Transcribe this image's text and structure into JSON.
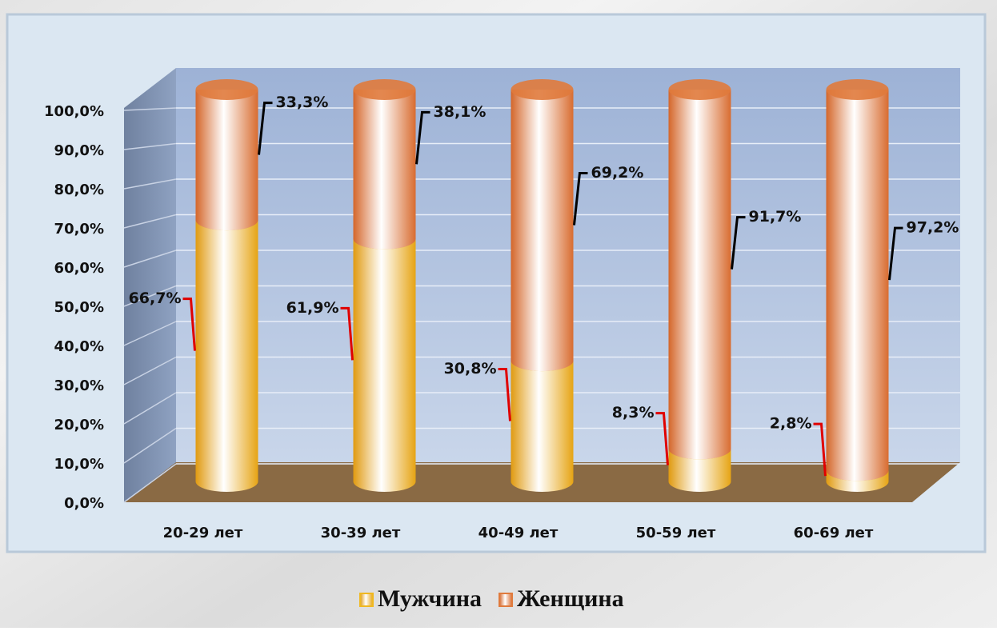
{
  "chart_data": {
    "type": "bar",
    "stacked": true,
    "categories": [
      "20-29 лет",
      "30-39 лет",
      "40-49 лет",
      "50-59 лет",
      "60-69 лет"
    ],
    "series": [
      {
        "name": "Мужчина",
        "color": "#f0b820",
        "values": [
          66.7,
          61.9,
          30.8,
          8.3,
          2.8
        ],
        "value_labels": [
          "66,7%",
          "61,9%",
          "30,8%",
          "8,3%",
          "2,8%"
        ]
      },
      {
        "name": "Женщина",
        "color": "#e07a3c",
        "values": [
          33.3,
          38.1,
          69.2,
          91.7,
          97.2
        ],
        "value_labels": [
          "33,3%",
          "38,1%",
          "69,2%",
          "91,7%",
          "97,2%"
        ]
      }
    ],
    "ylim": [
      0,
      100
    ],
    "yticks": [
      {
        "value": 0,
        "label": "0,0%"
      },
      {
        "value": 10,
        "label": "10,0%"
      },
      {
        "value": 20,
        "label": "20,0%"
      },
      {
        "value": 30,
        "label": "30,0%"
      },
      {
        "value": 40,
        "label": "40,0%"
      },
      {
        "value": 50,
        "label": "50,0%"
      },
      {
        "value": 60,
        "label": "60,0%"
      },
      {
        "value": 70,
        "label": "70,0%"
      },
      {
        "value": 80,
        "label": "80,0%"
      },
      {
        "value": 90,
        "label": "90,0%"
      },
      {
        "value": 100,
        "label": "100,0%"
      }
    ],
    "grid": true,
    "legend": "bottom"
  }
}
